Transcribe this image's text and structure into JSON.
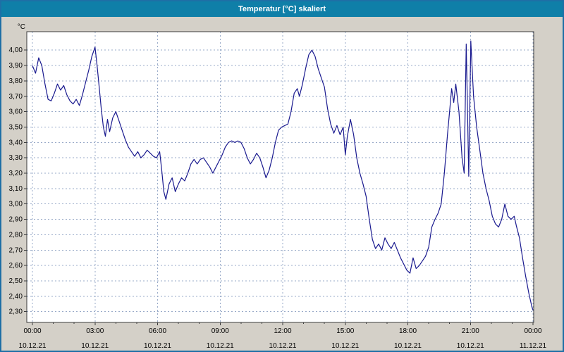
{
  "window": {
    "title": "Temperatur [°C] skaliert"
  },
  "colors": {
    "titlebar": "#0f7fa8",
    "titlebar_text": "#ffffff",
    "window_border": "#1e6fa6",
    "content_bg": "#d4d0c8",
    "plot_bg": "#ffffff",
    "grid": "#9aabc9",
    "axis": "#3a3a3a",
    "tick_text": "#000000",
    "line": "#1a1a8f"
  },
  "chart_data": {
    "type": "line",
    "title": "Temperatur [°C] skaliert",
    "xlabel": "",
    "ylabel": "°C",
    "xlim": [
      0,
      24
    ],
    "ylim": [
      2.23,
      4.12
    ],
    "grid": true,
    "legend": "none",
    "yticks": [
      {
        "value": 2.3,
        "label": "2,30"
      },
      {
        "value": 2.4,
        "label": "2,40"
      },
      {
        "value": 2.5,
        "label": "2,50"
      },
      {
        "value": 2.6,
        "label": "2,60"
      },
      {
        "value": 2.7,
        "label": "2,70"
      },
      {
        "value": 2.8,
        "label": "2,80"
      },
      {
        "value": 2.9,
        "label": "2,90"
      },
      {
        "value": 3.0,
        "label": "3,00"
      },
      {
        "value": 3.1,
        "label": "3,10"
      },
      {
        "value": 3.2,
        "label": "3,20"
      },
      {
        "value": 3.3,
        "label": "3,30"
      },
      {
        "value": 3.4,
        "label": "3,40"
      },
      {
        "value": 3.5,
        "label": "3,50"
      },
      {
        "value": 3.6,
        "label": "3,60"
      },
      {
        "value": 3.7,
        "label": "3,70"
      },
      {
        "value": 3.8,
        "label": "3,80"
      },
      {
        "value": 3.9,
        "label": "3,90"
      },
      {
        "value": 4.0,
        "label": "4,00"
      }
    ],
    "xticks": [
      {
        "hour": 0,
        "time": "00:00",
        "date": "10.12.21"
      },
      {
        "hour": 3,
        "time": "03:00",
        "date": "10.12.21"
      },
      {
        "hour": 6,
        "time": "06:00",
        "date": "10.12.21"
      },
      {
        "hour": 9,
        "time": "09:00",
        "date": "10.12.21"
      },
      {
        "hour": 12,
        "time": "12:00",
        "date": "10.12.21"
      },
      {
        "hour": 15,
        "time": "15:00",
        "date": "10.12.21"
      },
      {
        "hour": 18,
        "time": "18:00",
        "date": "10.12.21"
      },
      {
        "hour": 21,
        "time": "21:00",
        "date": "10.12.21"
      },
      {
        "hour": 24,
        "time": "00:00",
        "date": "11.12.21"
      }
    ],
    "series": [
      {
        "name": "Temperatur [°C]",
        "color": "#1a1a8f",
        "points": [
          [
            0.0,
            3.9
          ],
          [
            0.15,
            3.85
          ],
          [
            0.3,
            3.95
          ],
          [
            0.45,
            3.9
          ],
          [
            0.6,
            3.78
          ],
          [
            0.75,
            3.68
          ],
          [
            0.9,
            3.67
          ],
          [
            1.05,
            3.72
          ],
          [
            1.2,
            3.78
          ],
          [
            1.35,
            3.74
          ],
          [
            1.5,
            3.77
          ],
          [
            1.65,
            3.71
          ],
          [
            1.8,
            3.67
          ],
          [
            1.95,
            3.65
          ],
          [
            2.1,
            3.68
          ],
          [
            2.25,
            3.64
          ],
          [
            2.4,
            3.71
          ],
          [
            2.55,
            3.79
          ],
          [
            2.7,
            3.87
          ],
          [
            2.85,
            3.96
          ],
          [
            3.0,
            4.02
          ],
          [
            3.1,
            3.9
          ],
          [
            3.2,
            3.76
          ],
          [
            3.3,
            3.62
          ],
          [
            3.4,
            3.5
          ],
          [
            3.5,
            3.44
          ],
          [
            3.6,
            3.55
          ],
          [
            3.7,
            3.47
          ],
          [
            3.85,
            3.56
          ],
          [
            4.0,
            3.6
          ],
          [
            4.15,
            3.54
          ],
          [
            4.3,
            3.48
          ],
          [
            4.45,
            3.42
          ],
          [
            4.6,
            3.37
          ],
          [
            4.75,
            3.34
          ],
          [
            4.9,
            3.31
          ],
          [
            5.05,
            3.34
          ],
          [
            5.2,
            3.3
          ],
          [
            5.35,
            3.32
          ],
          [
            5.5,
            3.35
          ],
          [
            5.65,
            3.33
          ],
          [
            5.8,
            3.31
          ],
          [
            5.95,
            3.3
          ],
          [
            6.1,
            3.34
          ],
          [
            6.2,
            3.22
          ],
          [
            6.3,
            3.08
          ],
          [
            6.4,
            3.03
          ],
          [
            6.55,
            3.13
          ],
          [
            6.7,
            3.17
          ],
          [
            6.85,
            3.08
          ],
          [
            7.0,
            3.13
          ],
          [
            7.15,
            3.17
          ],
          [
            7.3,
            3.15
          ],
          [
            7.45,
            3.2
          ],
          [
            7.6,
            3.26
          ],
          [
            7.75,
            3.29
          ],
          [
            7.9,
            3.26
          ],
          [
            8.05,
            3.29
          ],
          [
            8.2,
            3.3
          ],
          [
            8.35,
            3.27
          ],
          [
            8.5,
            3.24
          ],
          [
            8.65,
            3.2
          ],
          [
            8.8,
            3.24
          ],
          [
            8.95,
            3.28
          ],
          [
            9.1,
            3.32
          ],
          [
            9.25,
            3.37
          ],
          [
            9.4,
            3.4
          ],
          [
            9.55,
            3.41
          ],
          [
            9.7,
            3.4
          ],
          [
            9.85,
            3.41
          ],
          [
            10.0,
            3.4
          ],
          [
            10.15,
            3.36
          ],
          [
            10.3,
            3.3
          ],
          [
            10.45,
            3.26
          ],
          [
            10.6,
            3.29
          ],
          [
            10.75,
            3.33
          ],
          [
            10.9,
            3.3
          ],
          [
            11.05,
            3.24
          ],
          [
            11.2,
            3.17
          ],
          [
            11.35,
            3.22
          ],
          [
            11.5,
            3.3
          ],
          [
            11.65,
            3.4
          ],
          [
            11.8,
            3.48
          ],
          [
            11.95,
            3.5
          ],
          [
            12.1,
            3.51
          ],
          [
            12.25,
            3.52
          ],
          [
            12.4,
            3.6
          ],
          [
            12.55,
            3.72
          ],
          [
            12.7,
            3.75
          ],
          [
            12.8,
            3.7
          ],
          [
            12.95,
            3.78
          ],
          [
            13.1,
            3.88
          ],
          [
            13.25,
            3.97
          ],
          [
            13.4,
            4.0
          ],
          [
            13.55,
            3.96
          ],
          [
            13.7,
            3.88
          ],
          [
            13.85,
            3.82
          ],
          [
            14.0,
            3.76
          ],
          [
            14.15,
            3.62
          ],
          [
            14.3,
            3.52
          ],
          [
            14.45,
            3.46
          ],
          [
            14.6,
            3.51
          ],
          [
            14.75,
            3.45
          ],
          [
            14.9,
            3.5
          ],
          [
            15.0,
            3.32
          ],
          [
            15.1,
            3.44
          ],
          [
            15.25,
            3.55
          ],
          [
            15.4,
            3.45
          ],
          [
            15.55,
            3.3
          ],
          [
            15.7,
            3.2
          ],
          [
            15.85,
            3.13
          ],
          [
            16.0,
            3.05
          ],
          [
            16.15,
            2.9
          ],
          [
            16.3,
            2.77
          ],
          [
            16.45,
            2.71
          ],
          [
            16.6,
            2.74
          ],
          [
            16.75,
            2.7
          ],
          [
            16.9,
            2.78
          ],
          [
            17.05,
            2.74
          ],
          [
            17.2,
            2.71
          ],
          [
            17.35,
            2.75
          ],
          [
            17.5,
            2.7
          ],
          [
            17.65,
            2.65
          ],
          [
            17.8,
            2.61
          ],
          [
            17.95,
            2.57
          ],
          [
            18.1,
            2.55
          ],
          [
            18.25,
            2.65
          ],
          [
            18.4,
            2.58
          ],
          [
            18.55,
            2.6
          ],
          [
            18.7,
            2.63
          ],
          [
            18.85,
            2.66
          ],
          [
            19.0,
            2.72
          ],
          [
            19.15,
            2.85
          ],
          [
            19.3,
            2.9
          ],
          [
            19.45,
            2.94
          ],
          [
            19.6,
            3.0
          ],
          [
            19.75,
            3.2
          ],
          [
            19.9,
            3.45
          ],
          [
            20.0,
            3.6
          ],
          [
            20.1,
            3.75
          ],
          [
            20.2,
            3.66
          ],
          [
            20.3,
            3.78
          ],
          [
            20.45,
            3.6
          ],
          [
            20.6,
            3.3
          ],
          [
            20.7,
            3.2
          ],
          [
            20.8,
            4.04
          ],
          [
            20.92,
            3.18
          ],
          [
            21.02,
            4.06
          ],
          [
            21.15,
            3.7
          ],
          [
            21.3,
            3.5
          ],
          [
            21.45,
            3.35
          ],
          [
            21.6,
            3.2
          ],
          [
            21.75,
            3.1
          ],
          [
            21.9,
            3.02
          ],
          [
            22.05,
            2.92
          ],
          [
            22.2,
            2.87
          ],
          [
            22.35,
            2.85
          ],
          [
            22.5,
            2.9
          ],
          [
            22.65,
            3.0
          ],
          [
            22.8,
            2.92
          ],
          [
            22.95,
            2.9
          ],
          [
            23.1,
            2.92
          ],
          [
            23.2,
            2.86
          ],
          [
            23.35,
            2.78
          ],
          [
            23.5,
            2.65
          ],
          [
            23.65,
            2.53
          ],
          [
            23.8,
            2.42
          ],
          [
            23.95,
            2.33
          ],
          [
            24.0,
            2.31
          ]
        ]
      }
    ]
  }
}
